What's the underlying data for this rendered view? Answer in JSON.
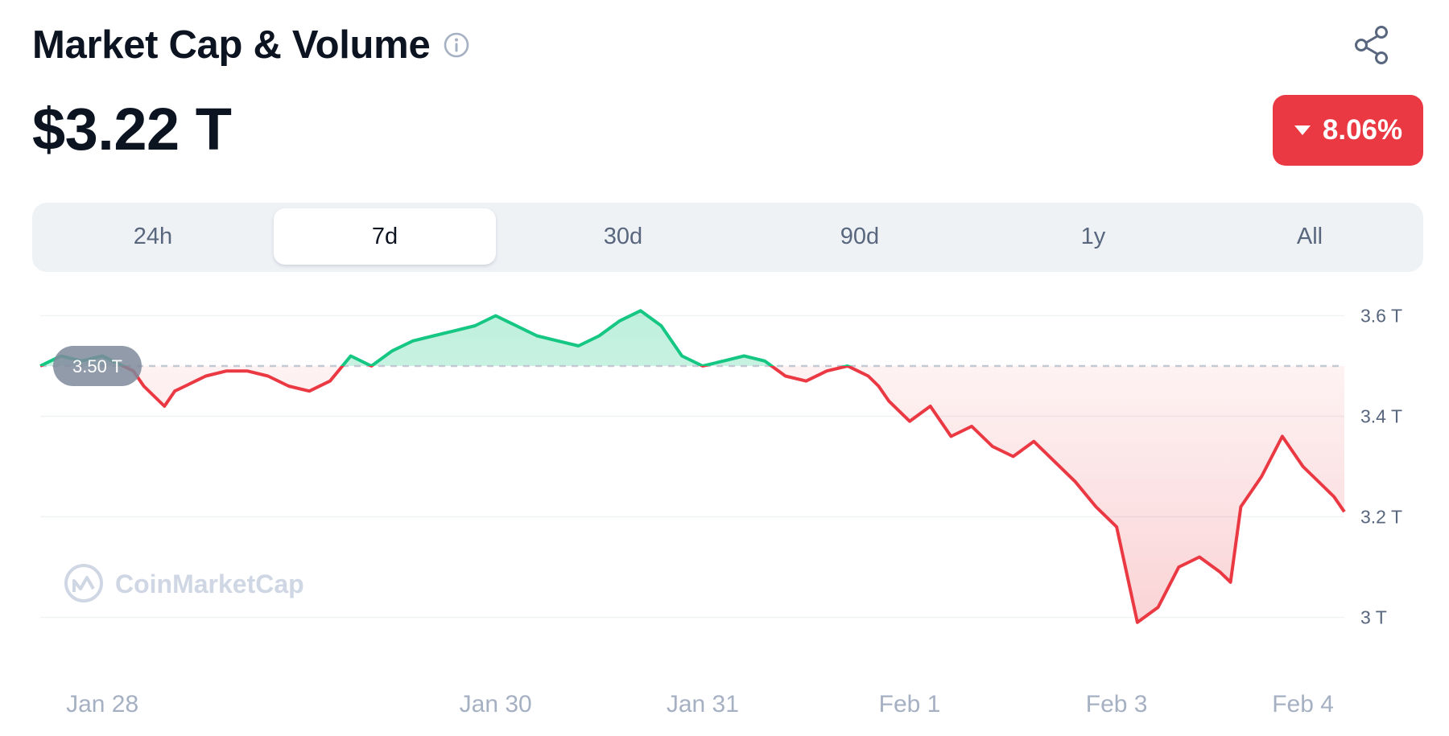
{
  "header": {
    "title": "Market Cap & Volume",
    "info_icon": "info-circle-icon",
    "share_icon": "share-icon"
  },
  "summary": {
    "value": "$3.22 T",
    "change": "8.06%",
    "change_direction": "down",
    "change_color": "#ea3943"
  },
  "tabs": [
    {
      "label": "24h",
      "active": false
    },
    {
      "label": "7d",
      "active": true
    },
    {
      "label": "30d",
      "active": false
    },
    {
      "label": "90d",
      "active": false
    },
    {
      "label": "1y",
      "active": false
    },
    {
      "label": "All",
      "active": false
    }
  ],
  "watermark": "CoinMarketCap",
  "colors": {
    "up": "#16c784",
    "down": "#ea3943",
    "grid": "#eff2f5",
    "reference": "#c3c9d2"
  },
  "chart_data": {
    "type": "line",
    "title": "",
    "xlabel": "",
    "ylabel": "",
    "ylim": [
      2.98,
      3.62
    ],
    "y_ticks": [
      3.0,
      3.2,
      3.4,
      3.6
    ],
    "y_tick_labels": [
      "3 T",
      "3.2 T",
      "3.4 T",
      "3.6 T"
    ],
    "x_ticks": [
      0.3,
      2.2,
      3.2,
      4.2,
      5.2,
      6.1
    ],
    "x_tick_labels": [
      "Jan 28",
      "Jan 30",
      "Jan 31",
      "Feb 1",
      "Feb 3",
      "Feb 4"
    ],
    "xlim": [
      0,
      6.3
    ],
    "reference": {
      "value": 3.5,
      "label": "3.50 T"
    },
    "grid": true,
    "fill": "area relative to reference",
    "series": [
      {
        "name": "",
        "x": [
          0.0,
          0.1,
          0.2,
          0.3,
          0.4,
          0.45,
          0.5,
          0.55,
          0.6,
          0.65,
          0.7,
          0.75,
          0.8,
          0.9,
          1.0,
          1.1,
          1.2,
          1.3,
          1.4,
          1.5,
          1.6,
          1.7,
          1.8,
          1.9,
          2.0,
          2.1,
          2.2,
          2.25,
          2.3,
          2.35,
          2.4,
          2.5,
          2.6,
          2.7,
          2.8,
          2.9,
          3.0,
          3.1,
          3.2,
          3.3,
          3.4,
          3.5,
          3.6,
          3.7,
          3.8,
          3.9,
          3.95,
          4.0,
          4.05,
          4.1,
          4.2,
          4.3,
          4.4,
          4.5,
          4.6,
          4.7,
          4.8,
          4.9,
          5.0,
          5.1,
          5.2,
          5.3,
          5.4,
          5.5,
          5.6,
          5.7,
          5.75,
          5.8,
          5.9,
          6.0,
          6.1,
          6.2,
          6.25,
          6.3
        ],
        "y": [
          3.5,
          3.52,
          3.51,
          3.52,
          3.5,
          3.49,
          3.46,
          3.44,
          3.42,
          3.45,
          3.46,
          3.47,
          3.48,
          3.49,
          3.49,
          3.48,
          3.46,
          3.45,
          3.47,
          3.52,
          3.5,
          3.53,
          3.55,
          3.56,
          3.57,
          3.58,
          3.6,
          3.59,
          3.58,
          3.57,
          3.56,
          3.55,
          3.54,
          3.56,
          3.59,
          3.61,
          3.58,
          3.52,
          3.5,
          3.51,
          3.52,
          3.51,
          3.48,
          3.47,
          3.49,
          3.5,
          3.49,
          3.48,
          3.46,
          3.43,
          3.39,
          3.42,
          3.36,
          3.38,
          3.34,
          3.32,
          3.35,
          3.31,
          3.27,
          3.22,
          3.18,
          2.99,
          3.02,
          3.1,
          3.12,
          3.09,
          3.07,
          3.22,
          3.28,
          3.36,
          3.3,
          3.26,
          3.24,
          3.21
        ]
      }
    ]
  }
}
